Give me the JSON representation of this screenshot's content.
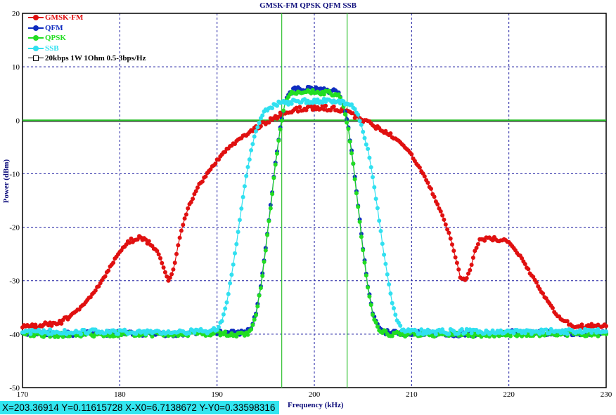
{
  "chart_data": {
    "type": "line",
    "title": "GMSK-FM  QPSK  QFM SSB",
    "xlabel": "Frequency (kHz)",
    "ylabel": "Power (dBm)",
    "xlim": [
      170,
      230
    ],
    "ylim": [
      -50,
      20
    ],
    "xticks": [
      170,
      180,
      190,
      200,
      210,
      220,
      230
    ],
    "yticks": [
      20,
      10,
      0,
      -10,
      -20,
      -30,
      -40,
      -50
    ],
    "grid": true,
    "legend_position": "top-left",
    "cursor_lines_x": [
      196.65,
      203.37
    ],
    "reference_line_y": 0,
    "series": [
      {
        "name": "GMSK-FM",
        "color": "#e01010",
        "x": [
          170,
          171,
          172,
          173,
          174,
          175,
          176,
          177,
          178,
          179,
          180,
          181,
          182,
          183,
          184,
          184.5,
          185,
          185.5,
          186,
          186.5,
          187,
          188,
          189,
          190,
          191,
          192,
          193,
          194,
          195,
          196,
          197,
          198,
          199,
          200,
          201,
          202,
          203,
          204,
          205,
          206,
          207,
          208,
          209,
          210,
          211,
          212,
          213,
          214,
          214.5,
          215,
          215.5,
          216,
          216.5,
          217,
          218,
          219,
          220,
          221,
          222,
          223,
          224,
          225,
          226,
          227,
          228,
          229,
          230
        ],
        "y": [
          -38.5,
          -38.6,
          -38.3,
          -38,
          -37.6,
          -36.5,
          -35,
          -33,
          -30.5,
          -27.5,
          -24.5,
          -22.5,
          -22,
          -22.8,
          -25,
          -27.5,
          -30,
          -28,
          -23.5,
          -19.5,
          -16.5,
          -12.5,
          -10,
          -7.5,
          -5.5,
          -4,
          -2.5,
          -1.5,
          -0.5,
          0.5,
          1.5,
          2,
          2.2,
          2.3,
          2.3,
          2.2,
          1.8,
          1,
          0,
          -0.8,
          -1.8,
          -3,
          -4.5,
          -6.5,
          -9.5,
          -13,
          -17,
          -22,
          -25.5,
          -29,
          -30,
          -28,
          -24.5,
          -22.5,
          -22,
          -22.3,
          -23,
          -25,
          -28,
          -31,
          -34,
          -36.5,
          -38,
          -38.5,
          -38.6,
          -38.5,
          -38.5
        ]
      },
      {
        "name": "QFM",
        "color": "#0f2cc0",
        "x": [
          170,
          175,
          180,
          185,
          190,
          192,
          193,
          193.5,
          194,
          194.5,
          195,
          195.5,
          196,
          196.5,
          197,
          197.5,
          198,
          199,
          200,
          201,
          202,
          202.5,
          203,
          203.5,
          204,
          204.5,
          205,
          205.5,
          206,
          206.5,
          207,
          208,
          210,
          215,
          220,
          225,
          230
        ],
        "y": [
          -39.8,
          -40,
          -39.8,
          -40,
          -39.7,
          -39.8,
          -39.7,
          -39,
          -36,
          -31,
          -24,
          -16,
          -8,
          -1.5,
          3.5,
          5.2,
          5.7,
          5.8,
          5.8,
          5.7,
          5.4,
          5,
          3,
          -1.5,
          -8,
          -16,
          -24,
          -31,
          -36,
          -38.5,
          -39.5,
          -39.8,
          -39.8,
          -40,
          -39.7,
          -39.8,
          -39.8
        ]
      },
      {
        "name": "QPSK",
        "color": "#22dd22",
        "x": [
          170,
          175,
          180,
          185,
          190,
          192,
          193,
          193.5,
          194,
          194.5,
          195,
          195.5,
          196,
          196.5,
          197,
          197.5,
          198,
          199,
          200,
          201,
          202,
          202.5,
          203,
          203.5,
          204,
          204.5,
          205,
          205.5,
          206,
          206.5,
          207,
          208,
          210,
          215,
          220,
          225,
          230
        ],
        "y": [
          -40,
          -40.2,
          -40,
          -40,
          -39.8,
          -40,
          -40,
          -39.2,
          -36.3,
          -31.3,
          -24.3,
          -16.3,
          -8.3,
          -1.8,
          3.3,
          4.8,
          5.2,
          5.3,
          5.3,
          5.2,
          5,
          4.7,
          2.7,
          -1.8,
          -8.3,
          -16.3,
          -24.3,
          -31.3,
          -36.3,
          -38.8,
          -39.6,
          -40,
          -40,
          -40.1,
          -40,
          -39.9,
          -40
        ]
      },
      {
        "name": "SSB",
        "color": "#30e0f0",
        "x": [
          170,
          175,
          180,
          185,
          188,
          189,
          190,
          190.5,
          191,
          191.5,
          192,
          192.5,
          193,
          193.5,
          194,
          194.5,
          195,
          195.5,
          196,
          197,
          198,
          199,
          200,
          201,
          202,
          203,
          204,
          204.5,
          205,
          205.5,
          206,
          206.5,
          207,
          207.5,
          208,
          208.5,
          209,
          209.5,
          210,
          212,
          215,
          220,
          225,
          230
        ],
        "y": [
          -39.5,
          -39.6,
          -39.5,
          -39.6,
          -39.5,
          -39.4,
          -39,
          -37.5,
          -34,
          -29,
          -23,
          -16.5,
          -10.5,
          -5.5,
          -2,
          0.5,
          1.8,
          2.5,
          3,
          3.3,
          3.5,
          3.6,
          3.6,
          3.6,
          3.5,
          3.3,
          2.5,
          1,
          -2,
          -5.5,
          -10.5,
          -16.5,
          -23,
          -29,
          -34,
          -37.5,
          -39,
          -39.4,
          -39.5,
          -39.6,
          -39.5,
          -39.6,
          -39.5,
          -39.5
        ]
      },
      {
        "name": "20kbps 1W 1Ohm 0.5-3bps/Hz",
        "color": "#000000",
        "x": [],
        "y": []
      }
    ]
  },
  "status_bar": {
    "text": "X=203.36914  Y=0.11615728 X-X0=6.7138672 Y-Y0=0.33598316"
  }
}
